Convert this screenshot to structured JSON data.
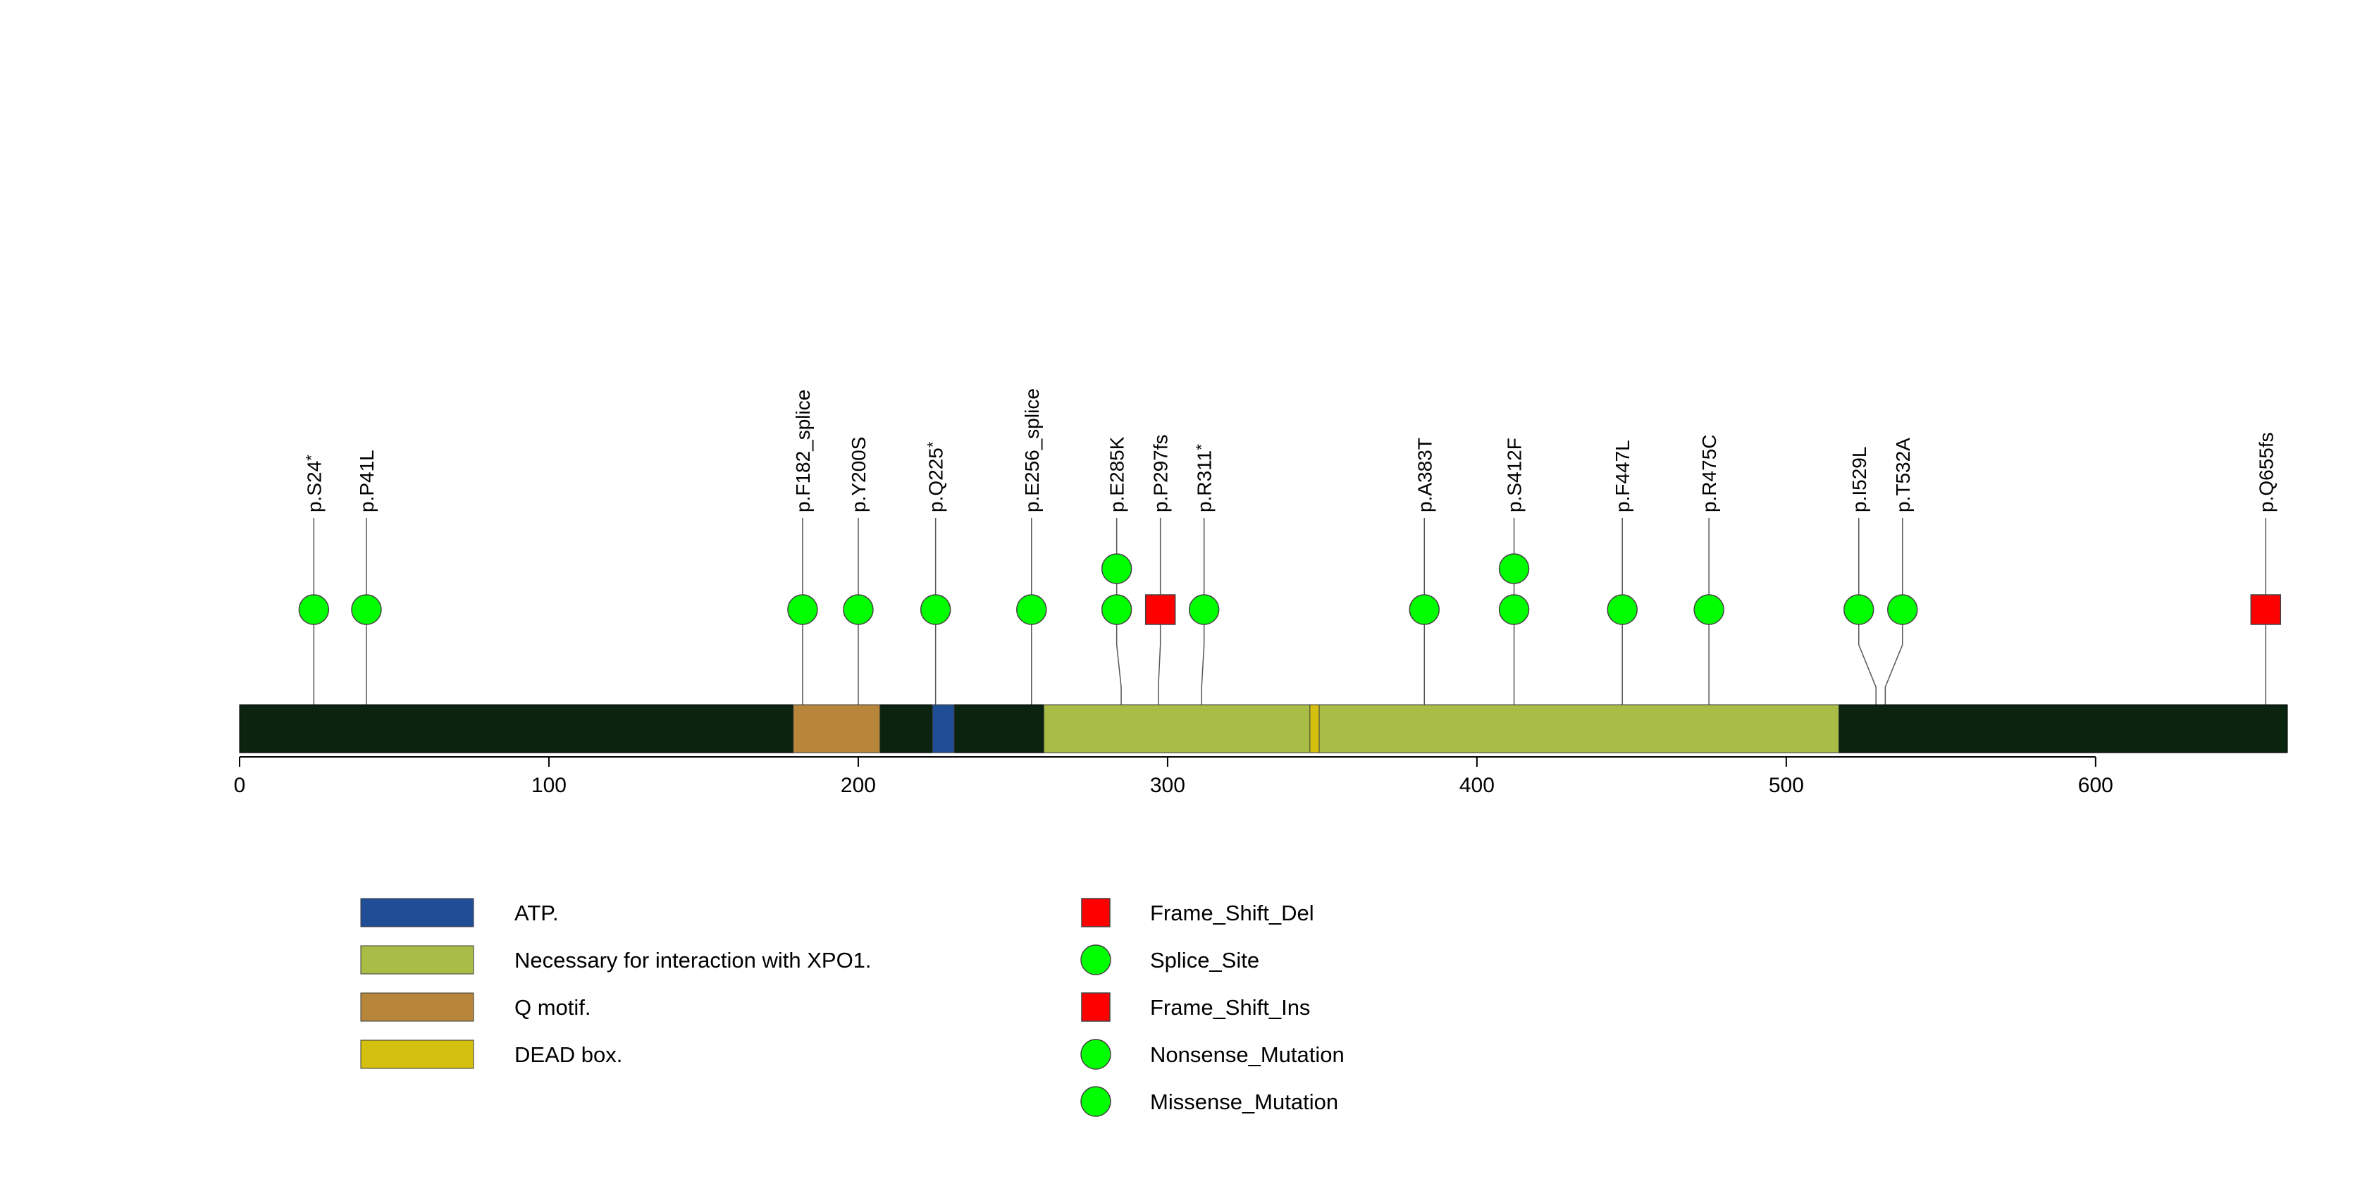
{
  "chart_data": {
    "type": "lollipop",
    "title": "",
    "protein_length": 662,
    "axis": {
      "range": [
        0,
        662
      ],
      "ticks": [
        0,
        100,
        200,
        300,
        400,
        500,
        600
      ]
    },
    "domains": [
      {
        "name": "Q motif.",
        "start": 179,
        "end": 207,
        "color": "#B8863B"
      },
      {
        "name": "ATP.",
        "start": 224,
        "end": 231,
        "color": "#1F4E96"
      },
      {
        "name": "Necessary for interaction with XPO1.",
        "start": 260,
        "end": 517,
        "color": "#A9BC45"
      },
      {
        "name": "DEAD box.",
        "start": 346,
        "end": 349,
        "color": "#D4C00E"
      }
    ],
    "mutations": [
      {
        "label": "p.S24*",
        "position": 24,
        "type": "Nonsense_Mutation",
        "count": 1
      },
      {
        "label": "p.P41L",
        "position": 41,
        "type": "Missense_Mutation",
        "count": 1
      },
      {
        "label": "p.F182_splice",
        "position": 182,
        "type": "Splice_Site",
        "count": 1
      },
      {
        "label": "p.Y200S",
        "position": 200,
        "type": "Missense_Mutation",
        "count": 1
      },
      {
        "label": "p.Q225*",
        "position": 225,
        "type": "Nonsense_Mutation",
        "count": 1
      },
      {
        "label": "p.E256_splice",
        "position": 256,
        "type": "Splice_Site",
        "count": 1
      },
      {
        "label": "p.E285K",
        "position": 285,
        "type": "Missense_Mutation",
        "count": 2
      },
      {
        "label": "p.P297fs",
        "position": 297,
        "type": "Frame_Shift_Del",
        "count": 1
      },
      {
        "label": "p.R311*",
        "position": 311,
        "type": "Nonsense_Mutation",
        "count": 1
      },
      {
        "label": "p.A383T",
        "position": 383,
        "type": "Missense_Mutation",
        "count": 1
      },
      {
        "label": "p.S412F",
        "position": 412,
        "type": "Missense_Mutation",
        "count": 2
      },
      {
        "label": "p.F447L",
        "position": 447,
        "type": "Missense_Mutation",
        "count": 1
      },
      {
        "label": "p.R475C",
        "position": 475,
        "type": "Missense_Mutation",
        "count": 1
      },
      {
        "label": "p.I529L",
        "position": 529,
        "type": "Missense_Mutation",
        "count": 1
      },
      {
        "label": "p.T532A",
        "position": 532,
        "type": "Missense_Mutation",
        "count": 1
      },
      {
        "label": "p.Q655fs",
        "position": 655,
        "type": "Frame_Shift_Del",
        "count": 1
      }
    ],
    "legend": {
      "domains": [
        {
          "name": "ATP.",
          "color": "#1F4E96"
        },
        {
          "name": "Necessary for interaction with XPO1.",
          "color": "#A9BC45"
        },
        {
          "name": "Q motif.",
          "color": "#B8863B"
        },
        {
          "name": "DEAD box.",
          "color": "#D4C00E"
        }
      ],
      "mutation_types": [
        {
          "name": "Frame_Shift_Del",
          "shape": "square",
          "color": "#FF0000"
        },
        {
          "name": "Splice_Site",
          "shape": "circle",
          "color": "#00FF00"
        },
        {
          "name": "Frame_Shift_Ins",
          "shape": "square",
          "color": "#FF0000"
        },
        {
          "name": "Nonsense_Mutation",
          "shape": "circle",
          "color": "#00FF00"
        },
        {
          "name": "Missense_Mutation",
          "shape": "circle",
          "color": "#00FF00"
        }
      ]
    },
    "colors": {
      "backbone": "#0B2410",
      "stem": "#555555"
    }
  }
}
